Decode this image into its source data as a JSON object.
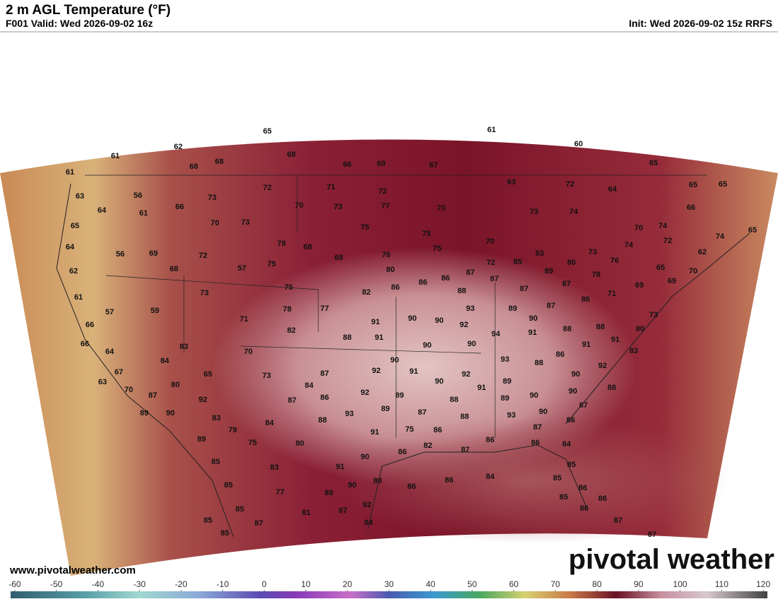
{
  "header": {
    "title": "2 m AGL Temperature (°F)",
    "valid": "F001 Valid: Wed 2026-09-02 16z",
    "init": "Init: Wed 2026-09-02 15z RRFS"
  },
  "footer": {
    "website": "www.pivotalweather.com",
    "logo": "pivotal weather"
  },
  "colorbar": {
    "range": [
      -61,
      121
    ],
    "ticks": [
      -60,
      -50,
      -40,
      -30,
      -20,
      -10,
      0,
      10,
      20,
      30,
      40,
      50,
      60,
      70,
      80,
      90,
      100,
      110,
      120
    ]
  },
  "map": {
    "labels": [
      65,
      61,
      62,
      61,
      68,
      68,
      68,
      66,
      69,
      67,
      60,
      65,
      61,
      63,
      72,
      64,
      65,
      65,
      63,
      56,
      73,
      72,
      71,
      72,
      66,
      64,
      61,
      66,
      70,
      73,
      77,
      70,
      73,
      74,
      70,
      74,
      74,
      65,
      65,
      70,
      73,
      75,
      75,
      72,
      64,
      56,
      69,
      72,
      78,
      68,
      68,
      76,
      75,
      70,
      74,
      62,
      83,
      80,
      73,
      76,
      62,
      68,
      57,
      75,
      80,
      72,
      85,
      89,
      65,
      70,
      86,
      87,
      86,
      87,
      78,
      87,
      69,
      69,
      61,
      75,
      82,
      86,
      88,
      87,
      71,
      86,
      57,
      59,
      73,
      77,
      78,
      93,
      89,
      87,
      73,
      66,
      71,
      82,
      91,
      90,
      90,
      92,
      90,
      91,
      88,
      88,
      80,
      88,
      91,
      94,
      91,
      91,
      66,
      83,
      90,
      90,
      86,
      83,
      64,
      70,
      90,
      93,
      88,
      84,
      67,
      65,
      73,
      87,
      92,
      91,
      92,
      90,
      92,
      63,
      80,
      84,
      90,
      89,
      91,
      88,
      70,
      87,
      92,
      89,
      90,
      92,
      86,
      87,
      88,
      89,
      90,
      87,
      89,
      90,
      93,
      89,
      87,
      88,
      93,
      90,
      86,
      83,
      88,
      84,
      79,
      87,
      75,
      86,
      91,
      89,
      75,
      80,
      82,
      86,
      87,
      86,
      86,
      84,
      90,
      85,
      83,
      91,
      85,
      84,
      86,
      86,
      90,
      88,
      85,
      85,
      86,
      77,
      88,
      85,
      86,
      85,
      81,
      87,
      92,
      86,
      85,
      87,
      94,
      87,
      85,
      87
    ]
  }
}
